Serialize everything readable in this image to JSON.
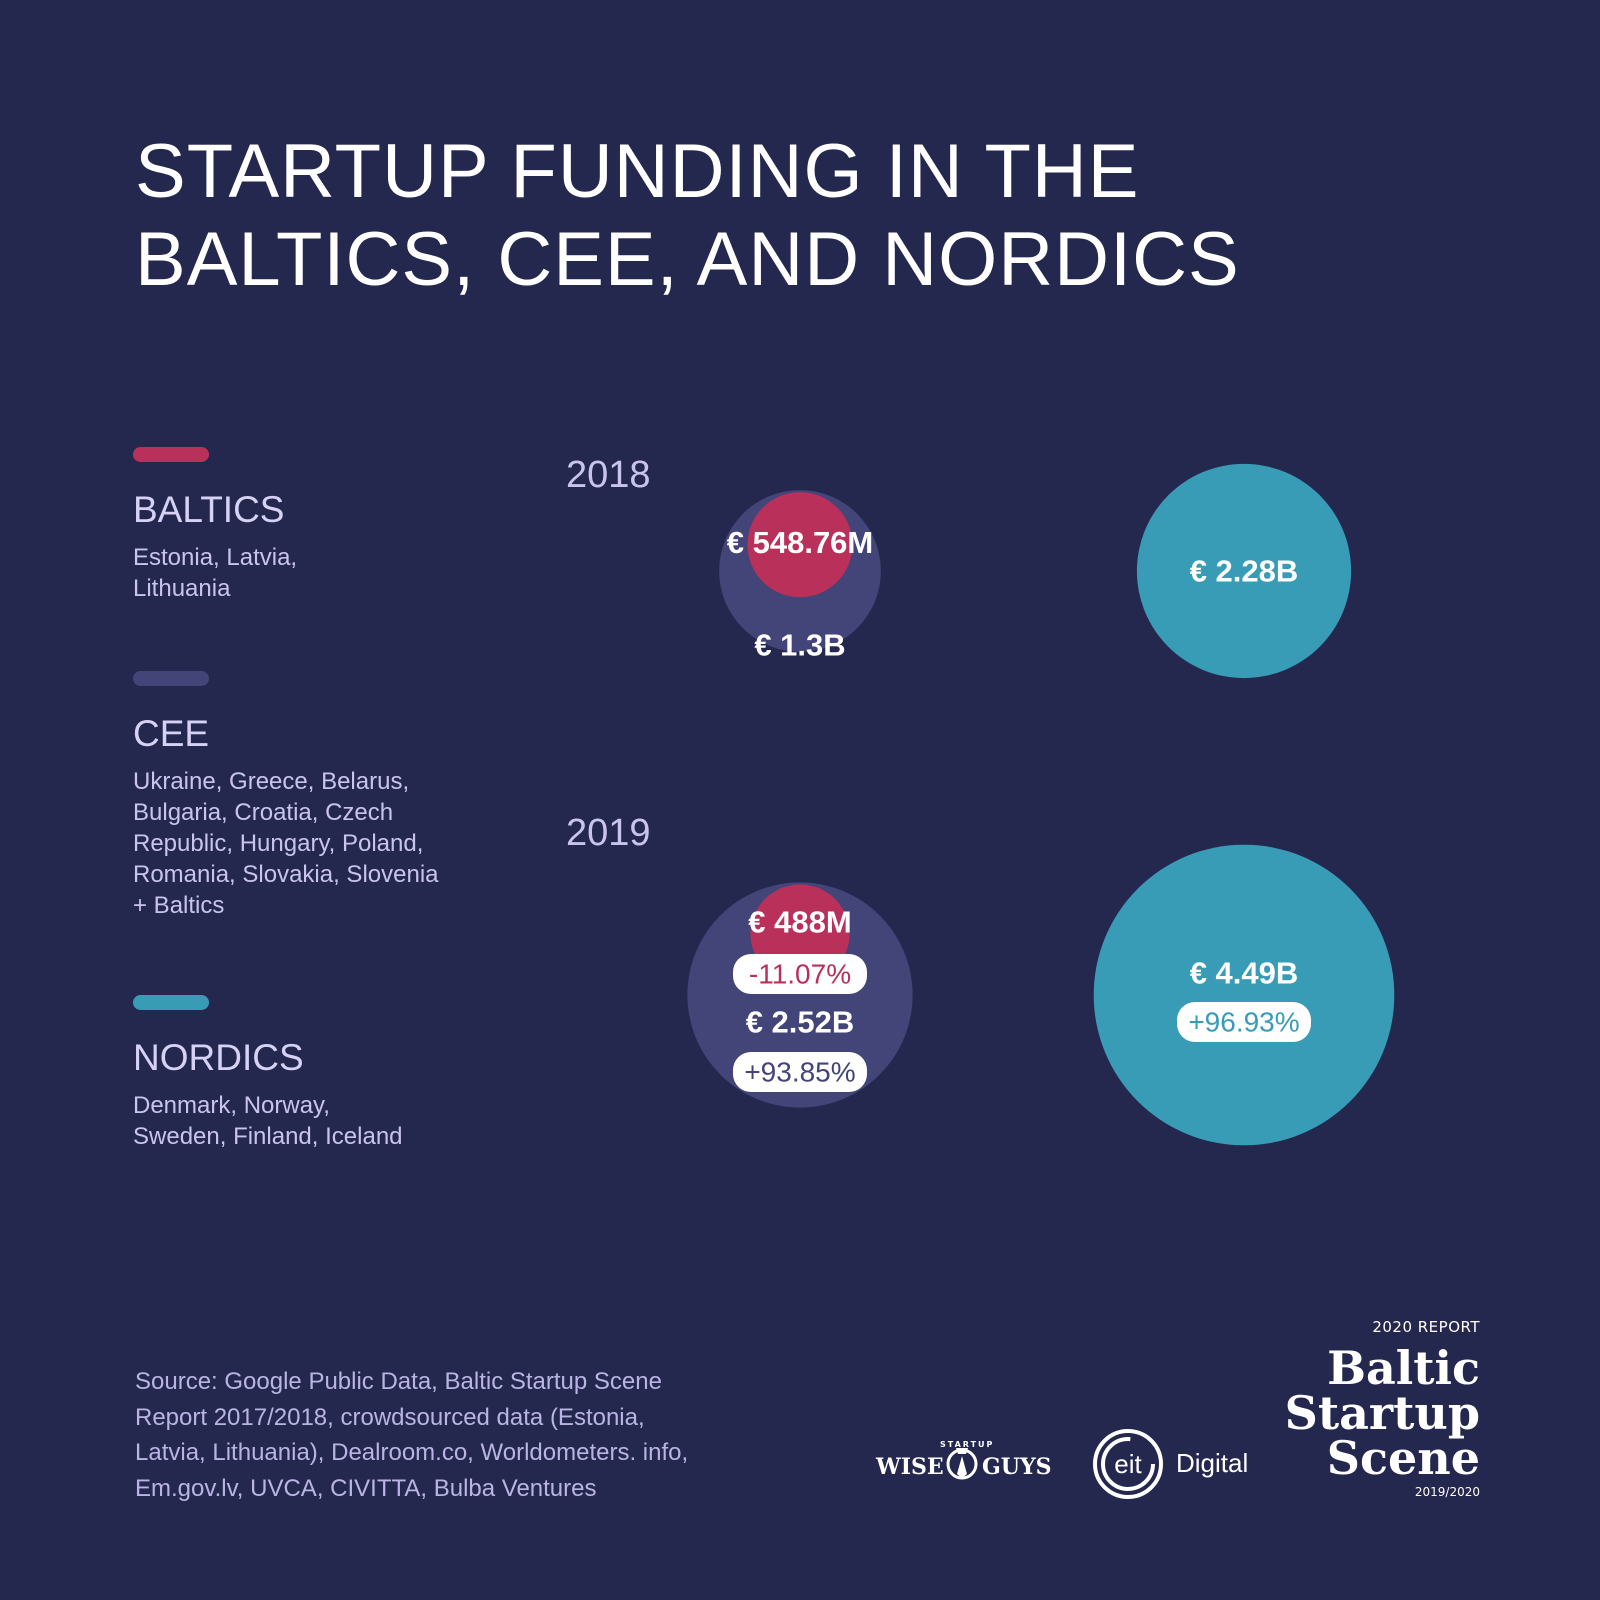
{
  "title": "STARTUP FUNDING IN THE BALTICS, CEE, AND NORDICS",
  "legend": [
    {
      "name": "BALTICS",
      "description": "Estonia, Latvia, Lithuania",
      "color": "#b9305a"
    },
    {
      "name": "CEE",
      "description": "Ukraine, Greece, Belarus, Bulgaria, Croatia, Czech Republic, Hungary, Poland, Romania, Slovakia, Slovenia + Baltics",
      "color": "#434478"
    },
    {
      "name": "NORDICS",
      "description": "Denmark, Norway, Sweden, Finland, Iceland",
      "color": "#389cb6"
    }
  ],
  "chart_data": {
    "type": "bubble",
    "unit": "EUR",
    "categories": [
      "2018",
      "2019"
    ],
    "series": [
      {
        "name": "BALTICS",
        "values": [
          548.76,
          488
        ],
        "labels": [
          "€ 548.76M",
          "€ 488M"
        ],
        "change": [
          null,
          "-11.07%"
        ],
        "color": "#b9305a"
      },
      {
        "name": "CEE",
        "values": [
          1300,
          2520
        ],
        "labels": [
          "€ 1.3B",
          "€ 2.52B"
        ],
        "change": [
          null,
          "+93.85%"
        ],
        "color": "#434478"
      },
      {
        "name": "NORDICS",
        "values": [
          2280,
          4490
        ],
        "labels": [
          "€ 2.28B",
          "€ 4.49B"
        ],
        "change": [
          null,
          "+96.93%"
        ],
        "color": "#389cb6"
      }
    ]
  },
  "source": "Source: Google Public Data, Baltic Startup Scene Report 2017/2018, crowdsourced data (Estonia, Latvia, Lithuania), Dealroom.co, Worldometers. info, Em.gov.lv, UVCA, CIVITTA, Bulba Ventures",
  "logos": {
    "wise_small": "STARTUP",
    "wise_left": "WISE",
    "wise_right": "GUYS",
    "eit_ring": "eit",
    "eit_word": "Digital",
    "report_label": "2020 REPORT",
    "report_name_1": "Baltic",
    "report_name_2": "Startup",
    "report_name_3": "Scene",
    "report_years": "2019/2020"
  }
}
